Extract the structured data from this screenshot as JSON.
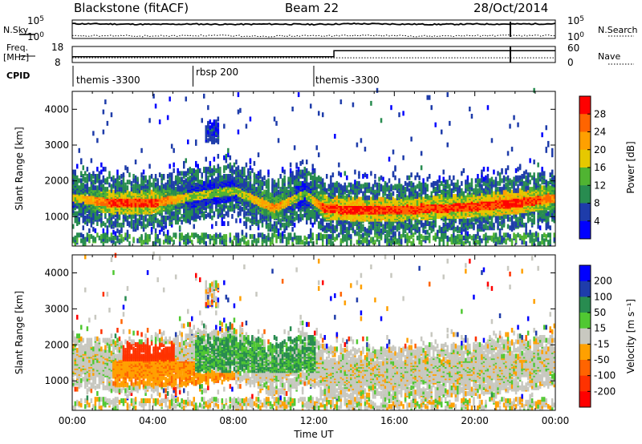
{
  "header": {
    "title": "Blackstone (fitACF)",
    "beam": "Beam 22",
    "date": "28/Oct/2014"
  },
  "left_labels": {
    "nsky": "N.Sky",
    "freq": "Freq.",
    "mhz": "[MHz]",
    "cpid": "CPID"
  },
  "right_labels": {
    "nsearch": "N.Search",
    "nave": "Nave"
  },
  "cpid_segments": [
    {
      "label": "themis -3300",
      "start_hour": 0
    },
    {
      "label": "rbsp 200",
      "start_hour": 6
    },
    {
      "label": "themis -3300",
      "start_hour": 12
    }
  ],
  "colorbars": {
    "power": {
      "title": "Power [dB]",
      "ticks": [
        "28",
        "24",
        "20",
        "16",
        "12",
        "8",
        "4"
      ],
      "colors": [
        "#ff0000",
        "#ff6400",
        "#ffa000",
        "#e6c800",
        "#50b432",
        "#288c50",
        "#1e3caa",
        "#0000ff"
      ]
    },
    "velocity": {
      "title": "Velocity [m s⁻¹]",
      "ticks": [
        "200",
        "100",
        "50",
        "15",
        "-15",
        "-50",
        "-100",
        "-200"
      ],
      "colors": [
        "#0000ff",
        "#1e3caa",
        "#288c50",
        "#50c832",
        "#c8c8c0",
        "#ffa000",
        "#ff6400",
        "#ff3200",
        "#ff0000"
      ]
    }
  },
  "chart_data": [
    {
      "type": "line",
      "name": "noise",
      "left_ticks": [
        "10^5",
        "10^0"
      ],
      "right_ticks": [
        "10^5",
        "10^0"
      ],
      "series": [
        {
          "name": "N.Sky",
          "style": "solid",
          "values_log10": [
            4.4,
            4.3,
            4.2,
            4.3,
            4.2,
            4.3,
            4.2,
            4.4,
            4.3,
            4.2,
            4.3,
            4.3,
            4.4
          ]
        },
        {
          "name": "N.Search",
          "style": "dotted",
          "values_log10": [
            0.7,
            0.8,
            0.7,
            0.9,
            0.8,
            0.7,
            0.8,
            0.9,
            0.8,
            0.7,
            0.8,
            0.9,
            0.8
          ]
        }
      ],
      "x_hours": [
        0,
        2,
        4,
        6,
        8,
        10,
        12,
        14,
        16,
        18,
        20,
        22,
        24
      ]
    },
    {
      "type": "line",
      "name": "frequency",
      "left_ticks": [
        "18",
        "8"
      ],
      "right_ticks": [
        "60",
        "0"
      ],
      "series": [
        {
          "name": "Freq.",
          "unit": "MHz",
          "x_hours": [
            0,
            24
          ],
          "values": [
            10.5,
            10.5
          ]
        },
        {
          "name": "Nave",
          "x_hours": [
            0,
            13.0,
            13.0,
            24
          ],
          "values": [
            23,
            23,
            47,
            47
          ]
        }
      ]
    },
    {
      "type": "heatmap",
      "name": "power",
      "ylabel": "Slant Range [km]",
      "yticks": [
        "4000",
        "3000",
        "2000",
        "1000"
      ],
      "ylim": [
        180,
        4500
      ],
      "xlim": [
        0,
        24
      ],
      "zlim": [
        0,
        30
      ],
      "zunit": "dB",
      "echo_bands": [
        {
          "x_hours": [
            0,
            2,
            4,
            6,
            8,
            10,
            11.5,
            12.5,
            14,
            16,
            18,
            20,
            22,
            24
          ],
          "range_km": [
            1500,
            1350,
            1350,
            1550,
            1700,
            1200,
            1600,
            1200,
            1150,
            1150,
            1200,
            1250,
            1350,
            1500
          ],
          "peak_db": [
            16,
            26,
            26,
            14,
            14,
            22,
            12,
            26,
            28,
            26,
            26,
            26,
            28,
            22
          ]
        }
      ]
    },
    {
      "type": "heatmap",
      "name": "velocity",
      "ylabel": "Slant Range [km]",
      "xlabel": "Time UT",
      "yticks": [
        "4000",
        "3000",
        "2000",
        "1000"
      ],
      "xticks": [
        "00:00",
        "04:00",
        "08:00",
        "12:00",
        "16:00",
        "20:00",
        "00:00"
      ],
      "ylim": [
        180,
        4500
      ],
      "xlim": [
        0,
        24
      ],
      "zlim": [
        -250,
        250
      ],
      "zunit": "m/s",
      "velocity_regions": [
        {
          "x_hours": [
            2.5,
            5.0
          ],
          "range_km": [
            1300,
            2000
          ],
          "velocity": -120
        },
        {
          "x_hours": [
            2.0,
            8.0
          ],
          "range_km": [
            800,
            1500
          ],
          "velocity": -40
        },
        {
          "x_hours": [
            6.0,
            12.0
          ],
          "range_km": [
            1200,
            2200
          ],
          "velocity": 30
        },
        {
          "x_hours": [
            12.5,
            24
          ],
          "range_km": [
            900,
            1900
          ],
          "velocity": 0
        }
      ]
    }
  ]
}
